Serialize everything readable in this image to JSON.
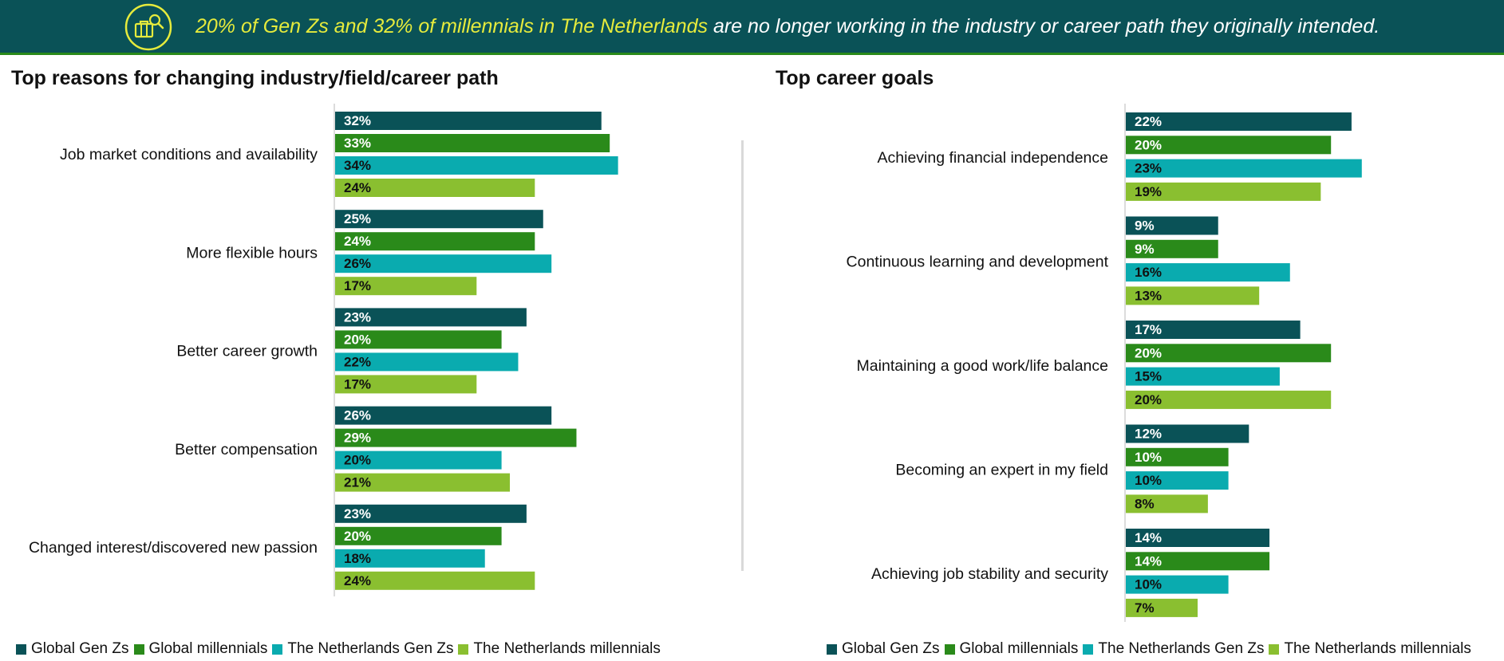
{
  "banner": {
    "highlight": "20% of Gen Zs and 32% of millennials in The Netherlands",
    "rest": " are no longer working in the industry or career path they originally intended.",
    "icon": "briefcase-search-icon",
    "background_color": "#0a5257",
    "highlight_color": "#e6eb3c"
  },
  "colors": {
    "global_gen_z": "#0a5257",
    "global_millennials": "#2a8a1a",
    "nl_gen_z": "#0aabaf",
    "nl_millennials": "#8abf30"
  },
  "legend": [
    "Global Gen Zs",
    "Global millennials",
    "The Netherlands Gen Zs",
    "The Netherlands millennials"
  ],
  "chart_data": [
    {
      "type": "bar",
      "orientation": "horizontal",
      "title": "Top reasons for changing industry/field/career path",
      "categories": [
        "Job market conditions and availability",
        "More flexible hours",
        "Better career growth",
        "Better compensation",
        "Changed interest/discovered new passion"
      ],
      "series": [
        {
          "name": "Global Gen Zs",
          "values": [
            32,
            25,
            23,
            26,
            23
          ]
        },
        {
          "name": "Global millennials",
          "values": [
            33,
            24,
            20,
            29,
            20
          ]
        },
        {
          "name": "The Netherlands Gen Zs",
          "values": [
            34,
            26,
            22,
            20,
            18
          ]
        },
        {
          "name": "The Netherlands millennials",
          "values": [
            24,
            17,
            17,
            21,
            24
          ]
        }
      ],
      "value_format": "percent",
      "legend_placement": "bottom"
    },
    {
      "type": "bar",
      "orientation": "horizontal",
      "title": "Top career goals",
      "categories": [
        "Achieving financial independence",
        "Continuous learning and development",
        "Maintaining a good work/life balance",
        "Becoming an expert in my field",
        "Achieving job stability and security"
      ],
      "series": [
        {
          "name": "Global Gen Zs",
          "values": [
            22,
            9,
            17,
            12,
            14
          ]
        },
        {
          "name": "Global millennials",
          "values": [
            20,
            9,
            20,
            10,
            14
          ]
        },
        {
          "name": "The Netherlands Gen Zs",
          "values": [
            23,
            16,
            15,
            10,
            10
          ]
        },
        {
          "name": "The Netherlands millennials",
          "values": [
            19,
            13,
            20,
            8,
            7
          ]
        }
      ],
      "value_format": "percent",
      "legend_placement": "bottom"
    }
  ]
}
